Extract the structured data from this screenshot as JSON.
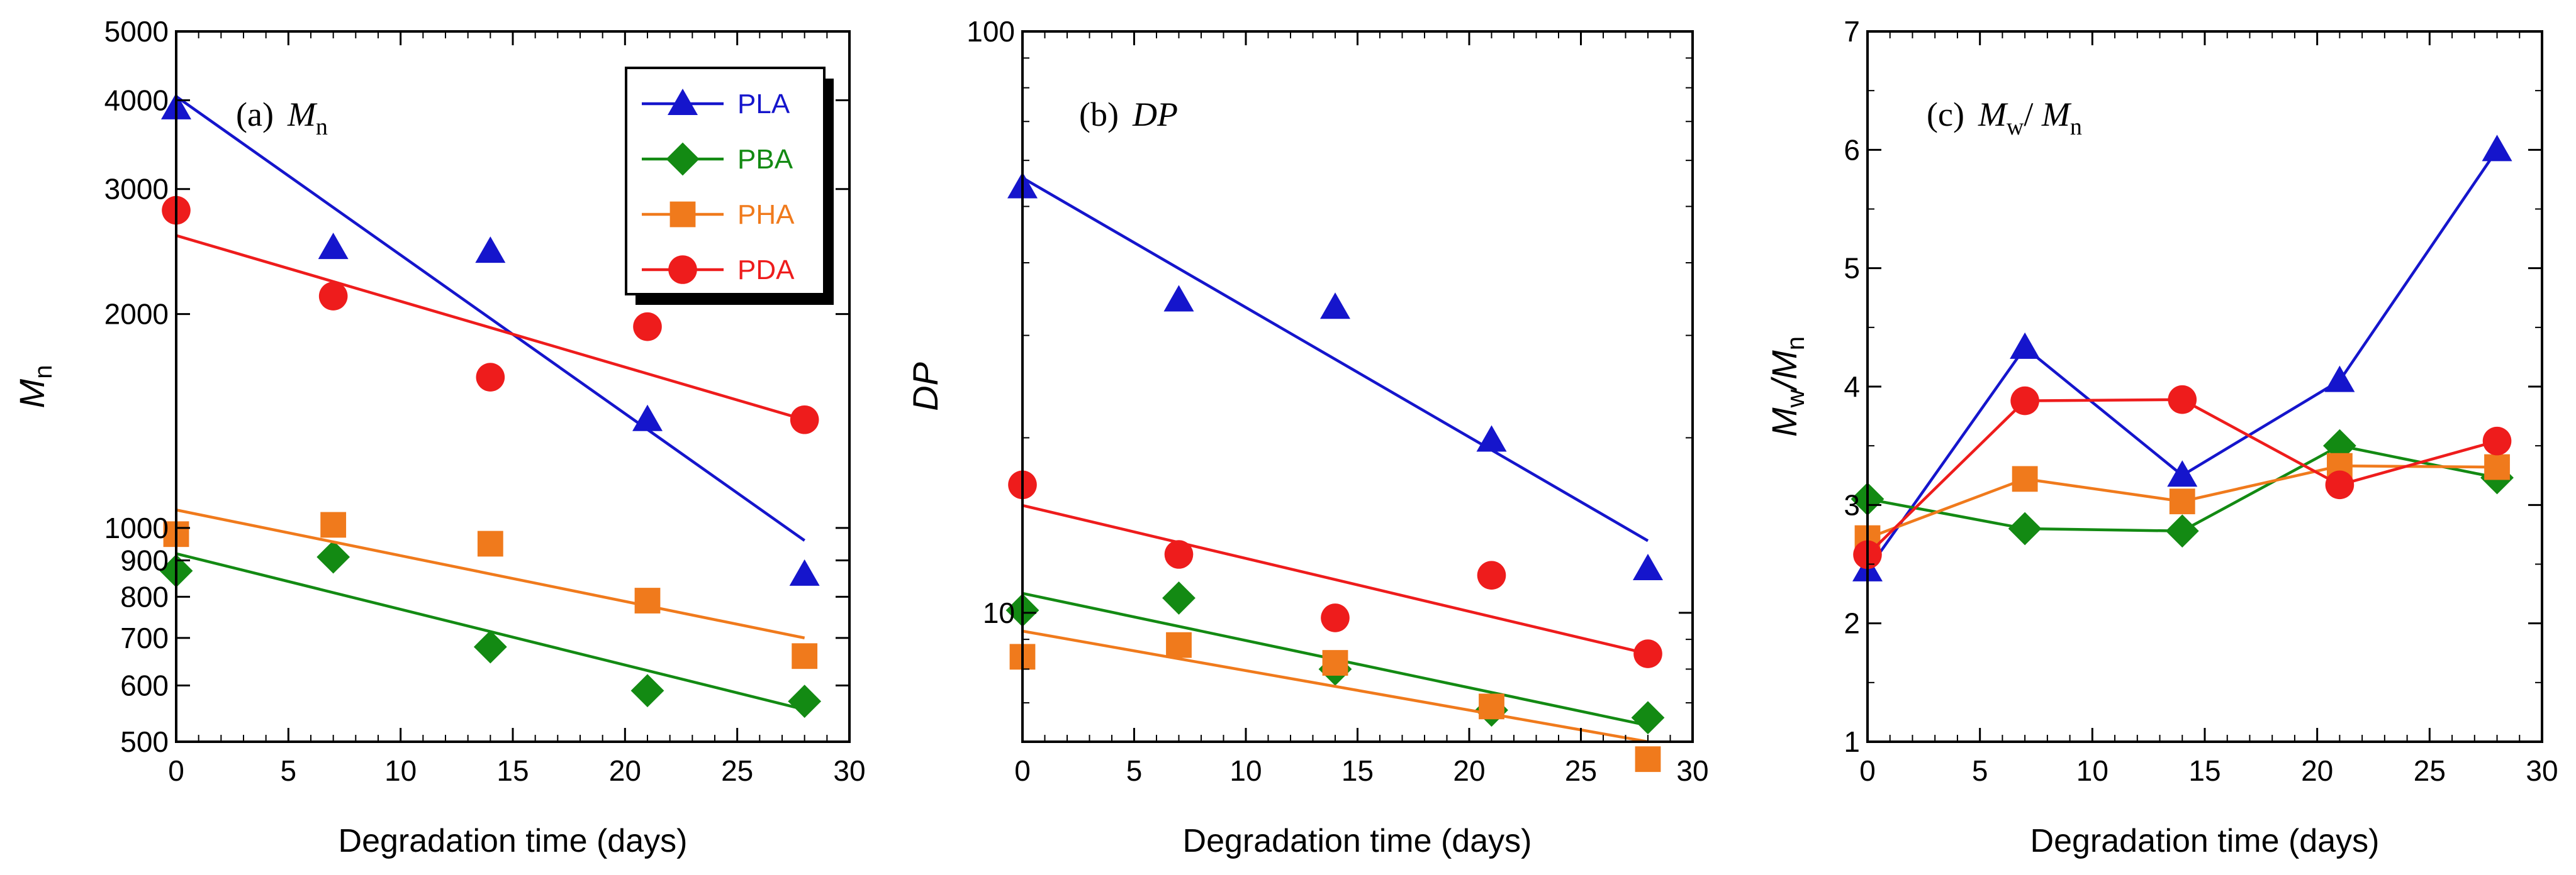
{
  "colors": {
    "PLA": "#1515cc",
    "PBA": "#138a13",
    "PHA": "#f07a1c",
    "PDA": "#ee1c1c"
  },
  "legend": [
    "PLA",
    "PBA",
    "PHA",
    "PDA"
  ],
  "markers": {
    "PLA": "triangle",
    "PBA": "diamond",
    "PHA": "square",
    "PDA": "circle"
  },
  "chart_data": [
    {
      "type": "scatter",
      "panel": "a",
      "annotation": {
        "prefix": "(a)",
        "symbol": "M",
        "sub": "n"
      },
      "xlabel": "Degradation time (days)",
      "ylabel": {
        "main": "M",
        "sub": "n"
      },
      "xlim": [
        0,
        30
      ],
      "ylim": [
        500,
        5000
      ],
      "yscale": "log",
      "xticks": [
        0,
        5,
        10,
        15,
        20,
        25,
        30
      ],
      "yticks": [
        500,
        600,
        700,
        800,
        900,
        1000,
        2000,
        3000,
        4000,
        5000
      ],
      "x": [
        0,
        7,
        14,
        21,
        28
      ],
      "series": [
        {
          "name": "PLA",
          "values": [
            3900,
            2480,
            2450,
            1420,
            860
          ],
          "fit": [
            4050,
            960
          ]
        },
        {
          "name": "PBA",
          "values": [
            870,
            910,
            680,
            590,
            570
          ],
          "fit": [
            920,
            555
          ]
        },
        {
          "name": "PHA",
          "values": [
            980,
            1010,
            950,
            790,
            660
          ],
          "fit": [
            1060,
            700
          ]
        },
        {
          "name": "PDA",
          "values": [
            2800,
            2120,
            1630,
            1920,
            1420
          ],
          "fit": [
            2580,
            1420
          ]
        }
      ],
      "legend": "top-right"
    },
    {
      "type": "scatter",
      "panel": "b",
      "annotation": {
        "prefix": "(b)",
        "symbol": "DP",
        "sub": ""
      },
      "xlabel": "Degradation time (days)",
      "ylabel": {
        "main": "DP",
        "sub": ""
      },
      "xlim": [
        0,
        30
      ],
      "ylim": [
        6,
        100
      ],
      "yscale": "log",
      "xticks": [
        0,
        5,
        10,
        15,
        20,
        25,
        30
      ],
      "yticks": [
        10,
        100
      ],
      "x": [
        0,
        7,
        14,
        21,
        28
      ],
      "series": [
        {
          "name": "PLA",
          "values": [
            54,
            34.5,
            33.5,
            19.8,
            11.9
          ],
          "fit": [
            56,
            13.3
          ]
        },
        {
          "name": "PBA",
          "values": [
            10.1,
            10.6,
            8.0,
            6.8,
            6.6
          ],
          "fit": [
            10.8,
            6.4
          ]
        },
        {
          "name": "PHA",
          "values": [
            8.4,
            8.8,
            8.2,
            6.9,
            5.6
          ],
          "fit": [
            9.3,
            6.0
          ]
        },
        {
          "name": "PDA",
          "values": [
            16.6,
            12.6,
            9.8,
            11.6,
            8.5
          ],
          "fit": [
            15.3,
            8.5
          ]
        }
      ]
    },
    {
      "type": "line",
      "panel": "c",
      "annotation": {
        "prefix": "(c)",
        "symbol": "M",
        "sub": "w",
        "symbol2": "M",
        "sub2": "n"
      },
      "xlabel": "Degradation time (days)",
      "ylabel": {
        "main": "M",
        "sub": "w",
        "main2": "M",
        "sub2": "n"
      },
      "xlim": [
        0,
        30
      ],
      "ylim": [
        1,
        7
      ],
      "xticks": [
        0,
        5,
        10,
        15,
        20,
        25,
        30
      ],
      "yticks": [
        1,
        2,
        3,
        4,
        5,
        6,
        7
      ],
      "x": [
        0,
        7,
        14,
        21,
        28
      ],
      "series": [
        {
          "name": "PLA",
          "values": [
            2.45,
            4.33,
            3.25,
            4.05,
            6.0
          ]
        },
        {
          "name": "PBA",
          "values": [
            3.05,
            2.8,
            2.78,
            3.5,
            3.23
          ]
        },
        {
          "name": "PHA",
          "values": [
            2.72,
            3.22,
            3.03,
            3.33,
            3.32
          ]
        },
        {
          "name": "PDA",
          "values": [
            2.58,
            3.88,
            3.89,
            3.17,
            3.54
          ]
        }
      ]
    }
  ]
}
